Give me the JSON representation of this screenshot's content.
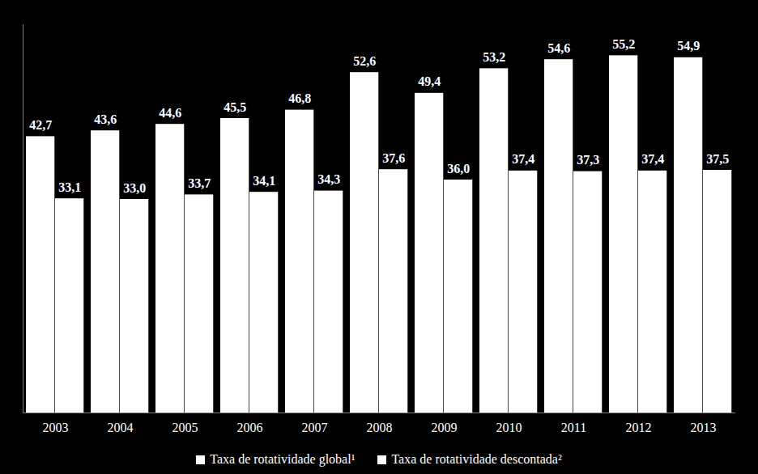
{
  "chart_data": {
    "type": "bar",
    "categories": [
      "2003",
      "2004",
      "2005",
      "2006",
      "2007",
      "2008",
      "2009",
      "2010",
      "2011",
      "2012",
      "2013"
    ],
    "series": [
      {
        "name": "Taxa de rotatividade global¹",
        "color": "#ffffff",
        "values": [
          42.7,
          43.6,
          44.6,
          45.5,
          46.8,
          52.6,
          49.4,
          53.2,
          54.6,
          55.2,
          54.9
        ],
        "value_labels": [
          "42,7",
          "43,6",
          "44,6",
          "45,5",
          "46,8",
          "52,6",
          "49,4",
          "53,2",
          "54,6",
          "55,2",
          "54,9"
        ]
      },
      {
        "name": "Taxa de rotatividade descontada²",
        "color": "#ffffff",
        "values": [
          33.1,
          33.0,
          33.7,
          34.1,
          34.3,
          37.6,
          36.0,
          37.4,
          37.3,
          37.4,
          37.5
        ],
        "value_labels": [
          "33,1",
          "33,0",
          "33,7",
          "34,1",
          "34,3",
          "37,6",
          "36,0",
          "37,4",
          "37,3",
          "37,4",
          "37,5"
        ]
      }
    ],
    "ylim": [
      0,
      60
    ],
    "yticks": [],
    "grid": false,
    "legend": "bottom",
    "data_labels": true,
    "tick_labels": "x"
  }
}
